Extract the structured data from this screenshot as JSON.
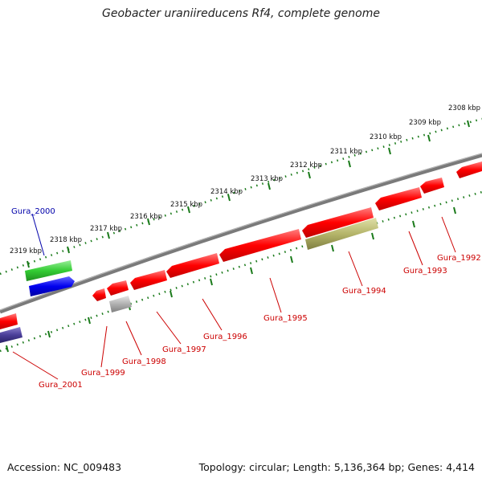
{
  "title": "Geobacter uraniireducens Rf4, complete genome",
  "footer": {
    "accession": "Accession: NC_009483",
    "summary": "Topology: circular; Length: 5,136,364 bp; Genes: 4,414"
  },
  "colors": {
    "backbone": "#808080",
    "tick_dots": "#1a7a1a",
    "label_red": "#cc0000",
    "label_blue": "#0000aa"
  },
  "kbp_labels": [
    "2308 kbp",
    "2309 kbp",
    "2310 kbp",
    "2311 kbp",
    "2312 kbp",
    "2313 kbp",
    "2314 kbp",
    "2315 kbp",
    "2316 kbp",
    "2317 kbp",
    "2318 kbp",
    "2319 kbp"
  ],
  "genes": [
    {
      "label": "Gura_1992",
      "color": "#ff0000",
      "strand": "reverse"
    },
    {
      "label": "Gura_1993",
      "color": "#ff0000",
      "strand": "reverse"
    },
    {
      "label": "Gura_1994",
      "color": "#b5b56a",
      "strand": "reverse"
    },
    {
      "label": "Gura_1995",
      "color": "#ff0000",
      "strand": "reverse"
    },
    {
      "label": "Gura_1996",
      "color": "#ff0000",
      "strand": "reverse"
    },
    {
      "label": "Gura_1997",
      "color": "#ff0000",
      "strand": "reverse"
    },
    {
      "label": "Gura_1998",
      "color": "#b0b0b0",
      "strand": "reverse"
    },
    {
      "label": "Gura_1999",
      "color": "#ff0000",
      "strand": "reverse"
    },
    {
      "label": "Gura_2000",
      "color": "#33cc33",
      "strand": "forward"
    },
    {
      "label": "Gura_2001",
      "color": "#ff0000",
      "strand": "reverse"
    }
  ]
}
